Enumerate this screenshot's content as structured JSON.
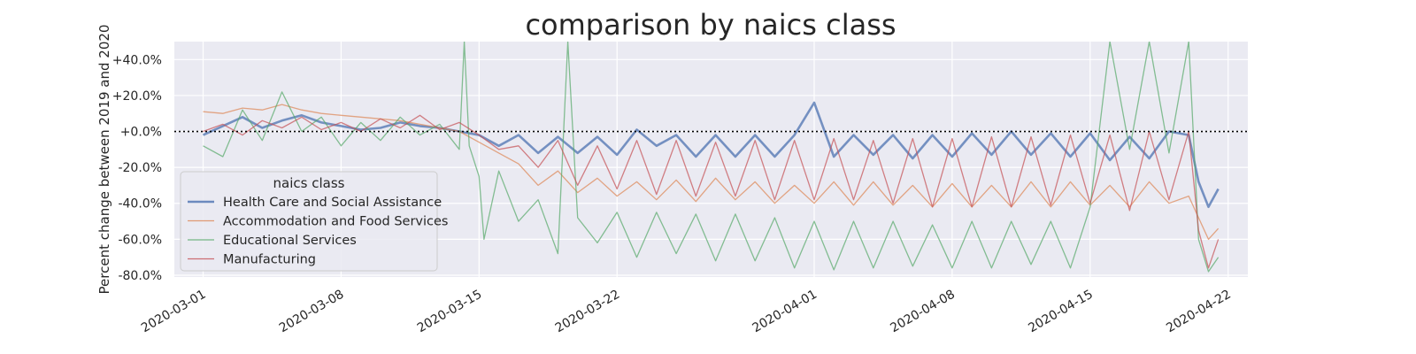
{
  "chart_data": {
    "type": "line",
    "title": "comparison by naics class",
    "xlabel": "",
    "ylabel": "Percent change between 2019 and 2020",
    "x_range": [
      "2020-02-28T13:00",
      "2020-04-23T00:00"
    ],
    "ylim": [
      -81,
      50
    ],
    "y_ticks": [
      {
        "value": 40,
        "label": "+40.0%"
      },
      {
        "value": 20,
        "label": "+20.0%"
      },
      {
        "value": 0,
        "label": "+0.0%"
      },
      {
        "value": -20,
        "label": "-20.0%"
      },
      {
        "value": -40,
        "label": "-40.0%"
      },
      {
        "value": -60,
        "label": "-60.0%"
      },
      {
        "value": -80,
        "label": "-80.0%"
      }
    ],
    "x_ticks": [
      {
        "value": "2020-03-01",
        "label": "2020-03-01"
      },
      {
        "value": "2020-03-08",
        "label": "2020-03-08"
      },
      {
        "value": "2020-03-15",
        "label": "2020-03-15"
      },
      {
        "value": "2020-03-22",
        "label": "2020-03-22"
      },
      {
        "value": "2020-04-01",
        "label": "2020-04-01"
      },
      {
        "value": "2020-04-08",
        "label": "2020-04-08"
      },
      {
        "value": "2020-04-15",
        "label": "2020-04-15"
      },
      {
        "value": "2020-04-22",
        "label": "2020-04-22"
      }
    ],
    "reference_line": {
      "value": 0,
      "style": "dotted",
      "color": "#000000"
    },
    "grid": true,
    "background": "#eaeaf2",
    "legend": {
      "title": "naics class",
      "position": "lower-left"
    },
    "series": [
      {
        "name": "Health Care and Social Assistance",
        "color": "#4c72b0",
        "points": [
          [
            "2020-03-01",
            -2
          ],
          [
            "2020-03-02",
            3
          ],
          [
            "2020-03-03",
            8
          ],
          [
            "2020-03-04",
            2
          ],
          [
            "2020-03-05",
            6
          ],
          [
            "2020-03-06",
            9
          ],
          [
            "2020-03-07",
            5
          ],
          [
            "2020-03-08",
            3
          ],
          [
            "2020-03-09",
            1
          ],
          [
            "2020-03-10",
            2
          ],
          [
            "2020-03-11",
            5
          ],
          [
            "2020-03-12",
            3
          ],
          [
            "2020-03-13",
            2
          ],
          [
            "2020-03-14",
            0
          ],
          [
            "2020-03-15",
            -2
          ],
          [
            "2020-03-16",
            -8
          ],
          [
            "2020-03-17",
            -2
          ],
          [
            "2020-03-18",
            -12
          ],
          [
            "2020-03-19",
            -3
          ],
          [
            "2020-03-20",
            -12
          ],
          [
            "2020-03-21",
            -3
          ],
          [
            "2020-03-22",
            -13
          ],
          [
            "2020-03-23",
            1
          ],
          [
            "2020-03-24",
            -8
          ],
          [
            "2020-03-25",
            -2
          ],
          [
            "2020-03-26",
            -14
          ],
          [
            "2020-03-27",
            -2
          ],
          [
            "2020-03-28",
            -14
          ],
          [
            "2020-03-29",
            -2
          ],
          [
            "2020-03-30",
            -14
          ],
          [
            "2020-03-31",
            -2
          ],
          [
            "2020-04-01",
            16
          ],
          [
            "2020-04-02",
            -14
          ],
          [
            "2020-04-03",
            -2
          ],
          [
            "2020-04-04",
            -13
          ],
          [
            "2020-04-05",
            -2
          ],
          [
            "2020-04-06",
            -15
          ],
          [
            "2020-04-07",
            -2
          ],
          [
            "2020-04-08",
            -14
          ],
          [
            "2020-04-09",
            -1
          ],
          [
            "2020-04-10",
            -13
          ],
          [
            "2020-04-11",
            0
          ],
          [
            "2020-04-12",
            -13
          ],
          [
            "2020-04-13",
            -1
          ],
          [
            "2020-04-14",
            -14
          ],
          [
            "2020-04-15",
            -1
          ],
          [
            "2020-04-16",
            -16
          ],
          [
            "2020-04-17",
            -3
          ],
          [
            "2020-04-18",
            -15
          ],
          [
            "2020-04-19",
            0
          ],
          [
            "2020-04-20",
            -2
          ],
          [
            "2020-04-20T12:00",
            -28
          ],
          [
            "2020-04-21",
            -42
          ],
          [
            "2020-04-21T12:00",
            -32
          ]
        ]
      },
      {
        "name": "Accommodation and Food Services",
        "color": "#dd8452",
        "points": [
          [
            "2020-03-01",
            11
          ],
          [
            "2020-03-02",
            10
          ],
          [
            "2020-03-03",
            13
          ],
          [
            "2020-03-04",
            12
          ],
          [
            "2020-03-05",
            15
          ],
          [
            "2020-03-06",
            12
          ],
          [
            "2020-03-07",
            10
          ],
          [
            "2020-03-08",
            9
          ],
          [
            "2020-03-09",
            8
          ],
          [
            "2020-03-10",
            7
          ],
          [
            "2020-03-11",
            6
          ],
          [
            "2020-03-12",
            4
          ],
          [
            "2020-03-13",
            2
          ],
          [
            "2020-03-14",
            0
          ],
          [
            "2020-03-15",
            -6
          ],
          [
            "2020-03-16",
            -12
          ],
          [
            "2020-03-17",
            -18
          ],
          [
            "2020-03-18",
            -30
          ],
          [
            "2020-03-19",
            -22
          ],
          [
            "2020-03-20",
            -34
          ],
          [
            "2020-03-21",
            -26
          ],
          [
            "2020-03-22",
            -36
          ],
          [
            "2020-03-23",
            -28
          ],
          [
            "2020-03-24",
            -38
          ],
          [
            "2020-03-25",
            -27
          ],
          [
            "2020-03-26",
            -39
          ],
          [
            "2020-03-27",
            -26
          ],
          [
            "2020-03-28",
            -38
          ],
          [
            "2020-03-29",
            -28
          ],
          [
            "2020-03-30",
            -40
          ],
          [
            "2020-03-31",
            -30
          ],
          [
            "2020-04-01",
            -40
          ],
          [
            "2020-04-02",
            -28
          ],
          [
            "2020-04-03",
            -41
          ],
          [
            "2020-04-04",
            -28
          ],
          [
            "2020-04-05",
            -41
          ],
          [
            "2020-04-06",
            -30
          ],
          [
            "2020-04-07",
            -42
          ],
          [
            "2020-04-08",
            -29
          ],
          [
            "2020-04-09",
            -42
          ],
          [
            "2020-04-10",
            -30
          ],
          [
            "2020-04-11",
            -42
          ],
          [
            "2020-04-12",
            -28
          ],
          [
            "2020-04-13",
            -42
          ],
          [
            "2020-04-14",
            -28
          ],
          [
            "2020-04-15",
            -41
          ],
          [
            "2020-04-16",
            -30
          ],
          [
            "2020-04-17",
            -42
          ],
          [
            "2020-04-18",
            -28
          ],
          [
            "2020-04-19",
            -40
          ],
          [
            "2020-04-20",
            -36
          ],
          [
            "2020-04-20T12:00",
            -48
          ],
          [
            "2020-04-21",
            -60
          ],
          [
            "2020-04-21T12:00",
            -54
          ]
        ]
      },
      {
        "name": "Educational Services",
        "color": "#55a868",
        "points": [
          [
            "2020-03-01",
            -8
          ],
          [
            "2020-03-02",
            -14
          ],
          [
            "2020-03-03",
            12
          ],
          [
            "2020-03-04",
            -5
          ],
          [
            "2020-03-05",
            22
          ],
          [
            "2020-03-06",
            0
          ],
          [
            "2020-03-07",
            8
          ],
          [
            "2020-03-08",
            -8
          ],
          [
            "2020-03-09",
            5
          ],
          [
            "2020-03-10",
            -5
          ],
          [
            "2020-03-11",
            8
          ],
          [
            "2020-03-12",
            -2
          ],
          [
            "2020-03-13",
            4
          ],
          [
            "2020-03-14",
            -10
          ],
          [
            "2020-03-14T06:00",
            50
          ],
          [
            "2020-03-14T12:00",
            -8
          ],
          [
            "2020-03-15",
            -25
          ],
          [
            "2020-03-15T06:00",
            -60
          ],
          [
            "2020-03-16",
            -22
          ],
          [
            "2020-03-17",
            -50
          ],
          [
            "2020-03-18",
            -38
          ],
          [
            "2020-03-19",
            -68
          ],
          [
            "2020-03-19T12:00",
            50
          ],
          [
            "2020-03-20",
            -48
          ],
          [
            "2020-03-21",
            -62
          ],
          [
            "2020-03-22",
            -45
          ],
          [
            "2020-03-23",
            -70
          ],
          [
            "2020-03-24",
            -45
          ],
          [
            "2020-03-25",
            -68
          ],
          [
            "2020-03-26",
            -46
          ],
          [
            "2020-03-27",
            -72
          ],
          [
            "2020-03-28",
            -46
          ],
          [
            "2020-03-29",
            -72
          ],
          [
            "2020-03-30",
            -48
          ],
          [
            "2020-03-31",
            -76
          ],
          [
            "2020-04-01",
            -50
          ],
          [
            "2020-04-02",
            -77
          ],
          [
            "2020-04-03",
            -50
          ],
          [
            "2020-04-04",
            -76
          ],
          [
            "2020-04-05",
            -50
          ],
          [
            "2020-04-06",
            -75
          ],
          [
            "2020-04-07",
            -52
          ],
          [
            "2020-04-08",
            -76
          ],
          [
            "2020-04-09",
            -50
          ],
          [
            "2020-04-10",
            -76
          ],
          [
            "2020-04-11",
            -50
          ],
          [
            "2020-04-12",
            -74
          ],
          [
            "2020-04-13",
            -50
          ],
          [
            "2020-04-14",
            -76
          ],
          [
            "2020-04-15",
            -42
          ],
          [
            "2020-04-16",
            50
          ],
          [
            "2020-04-17",
            -10
          ],
          [
            "2020-04-18",
            50
          ],
          [
            "2020-04-19",
            -12
          ],
          [
            "2020-04-20",
            50
          ],
          [
            "2020-04-20T12:00",
            -60
          ],
          [
            "2020-04-21",
            -78
          ],
          [
            "2020-04-21T12:00",
            -70
          ]
        ]
      },
      {
        "name": "Manufacturing",
        "color": "#c44e52",
        "points": [
          [
            "2020-03-01",
            0
          ],
          [
            "2020-03-02",
            4
          ],
          [
            "2020-03-03",
            -2
          ],
          [
            "2020-03-04",
            6
          ],
          [
            "2020-03-05",
            2
          ],
          [
            "2020-03-06",
            8
          ],
          [
            "2020-03-07",
            1
          ],
          [
            "2020-03-08",
            5
          ],
          [
            "2020-03-09",
            0
          ],
          [
            "2020-03-10",
            7
          ],
          [
            "2020-03-11",
            2
          ],
          [
            "2020-03-12",
            9
          ],
          [
            "2020-03-13",
            1
          ],
          [
            "2020-03-14",
            5
          ],
          [
            "2020-03-15",
            -2
          ],
          [
            "2020-03-16",
            -10
          ],
          [
            "2020-03-17",
            -8
          ],
          [
            "2020-03-18",
            -20
          ],
          [
            "2020-03-19",
            -5
          ],
          [
            "2020-03-20",
            -30
          ],
          [
            "2020-03-21",
            -8
          ],
          [
            "2020-03-22",
            -32
          ],
          [
            "2020-03-23",
            -5
          ],
          [
            "2020-03-24",
            -35
          ],
          [
            "2020-03-25",
            -5
          ],
          [
            "2020-03-26",
            -36
          ],
          [
            "2020-03-27",
            -6
          ],
          [
            "2020-03-28",
            -36
          ],
          [
            "2020-03-29",
            -5
          ],
          [
            "2020-03-30",
            -38
          ],
          [
            "2020-03-31",
            -5
          ],
          [
            "2020-04-01",
            -38
          ],
          [
            "2020-04-02",
            -4
          ],
          [
            "2020-04-03",
            -38
          ],
          [
            "2020-04-04",
            -5
          ],
          [
            "2020-04-05",
            -40
          ],
          [
            "2020-04-06",
            -4
          ],
          [
            "2020-04-07",
            -42
          ],
          [
            "2020-04-08",
            -4
          ],
          [
            "2020-04-09",
            -42
          ],
          [
            "2020-04-10",
            -3
          ],
          [
            "2020-04-11",
            -42
          ],
          [
            "2020-04-12",
            -3
          ],
          [
            "2020-04-13",
            -41
          ],
          [
            "2020-04-14",
            -2
          ],
          [
            "2020-04-15",
            -40
          ],
          [
            "2020-04-16",
            -2
          ],
          [
            "2020-04-17",
            -44
          ],
          [
            "2020-04-18",
            0
          ],
          [
            "2020-04-19",
            -38
          ],
          [
            "2020-04-20",
            0
          ],
          [
            "2020-04-20T12:00",
            -55
          ],
          [
            "2020-04-21",
            -76
          ],
          [
            "2020-04-21T12:00",
            -60
          ]
        ]
      }
    ]
  }
}
